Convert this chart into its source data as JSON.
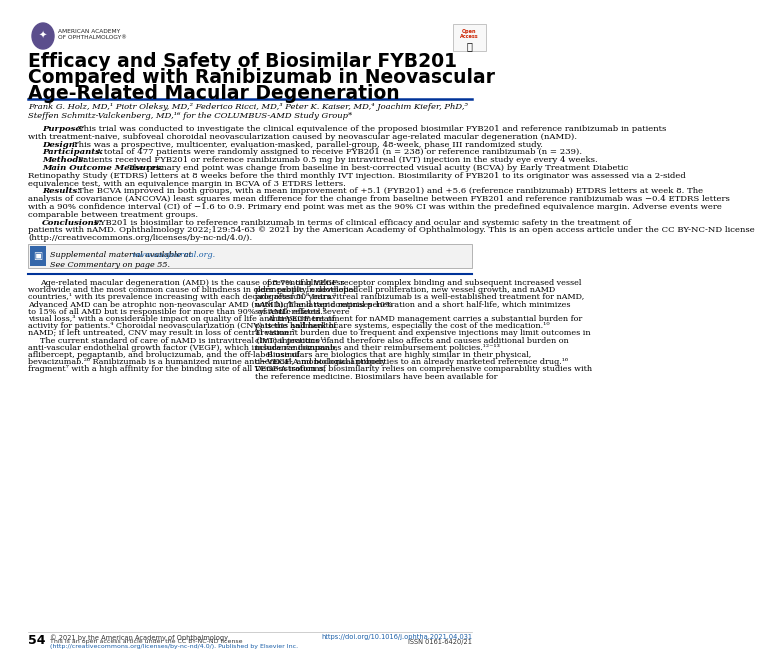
{
  "title_line1": "Efficacy and Safety of Biosimilar FYB201",
  "title_line2": "Compared with Ranibizumab in Neovascular",
  "title_line3": "Age-Related Macular Degeneration",
  "authors_line1": "Frank G. Holz, MD,¹ Piotr Oleksy, MD,² Federico Ricci, MD,³ Peter K. Kaiser, MD,⁴ Joachim Kiefer, PhD,⁵",
  "authors_line2": "Steffen Schmitz-Valckenberg, MD,¹⁶ for the COLUMBUS-AMD Study Group*",
  "logo_text1": "AMERICAN ACADEMY",
  "logo_text2": "OF OPHTHALMOLOGY®",
  "purpose_label": "Purpose:",
  "purpose_text": "This trial was conducted to investigate the clinical equivalence of the proposed biosimilar FYB201 and reference ranibizumab in patients with treatment-naive, subfoveal choroidal neovascularization caused by neovascular age-related macular degeneration (nAMD).",
  "design_label": "Design:",
  "design_text": "This was a prospective, multicenter, evaluation-masked, parallel-group, 48-week, phase III randomized study.",
  "participants_label": "Participants:",
  "participants_text": "A total of 477 patients were randomly assigned to receive FYB201 (n = 238) or reference ranibizumab (n = 239).",
  "methods_label": "Methods:",
  "methods_text": "Patients received FYB201 or reference ranibizumab 0.5 mg by intravitreal (IVT) injection in the study eye every 4 weeks.",
  "mainoutcome_label": "Main Outcome Measures:",
  "mainoutcome_text": "The primary end point was change from baseline in best-corrected visual acuity (BCVA) by Early Treatment Diabetic Retinopathy Study (ETDRS) letters at 8 weeks before the third monthly IVT injection. Biosimilarity of FYB201 to its originator was assessed via a 2-sided equivalence test, with an equivalence margin in BCVA of 3 ETDRS letters.",
  "results_label": "Results:",
  "results_text": "The BCVA improved in both groups, with a mean improvement of +5.1 (FYB201) and +5.6 (reference ranibizumab) ETDRS letters at week 8. The analysis of covariance (ANCOVA) least squares mean difference for the change from baseline between FYB201 and reference ranibizumab was −0.4 ETDRS letters with a 90% confidence interval (CI) of −1.6 to 0.9. Primary end point was met as the 90% CI was within the predefined equivalence margin. Adverse events were comparable between treatment groups.",
  "conclusions_label": "Conclusions:",
  "conclusions_text": "FYB201 is biosimilar to reference ranibizumab in terms of clinical efficacy and ocular and systemic safety in the treatment of patients with nAMD. Ophthalmology 2022;129:54-63 © 2021 by the American Academy of Ophthalmology. This is an open access article under the CC BY-NC-ND license (http://creativecommons.org/licenses/by-nc-nd/4.0/).",
  "conclusions_italic": "Ophthalmology 2022;129:54-63 © 2021 by the American Academy of Ophthalmology. This is an open access article under the CC BY-NC-ND license",
  "conclusions_link": "http://creativecommons.org/licenses/by-nc-nd/4.0/",
  "supplemental_pre": "Supplemental material available at ",
  "supplemental_link": "www.aaojournal.org.",
  "commentary_text": "See Commentary on page 55.",
  "body_col1_para1": "Age-related macular degeneration (AMD) is the cause of 8.7% of blindness worldwide and the most common cause of blindness in older people in developed countries,¹ with its prevalence increasing with each decade after 50 years.² Advanced AMD can be atrophic non-neovascular AMD (nAMD). The latter comprises 10% to 15% of all AMD but is responsible for more than 90% of AMD-related severe visual loss,³ with a considerable impact on quality of life and impairment of activity for patients.⁴ Choroidal neovascularization (CNV) is the hallmark of nAMD; if left untreated, CNV may result in loss of central vision.⁵",
  "body_col1_para2": "The current standard of care of nAMD is intravitreal (IVT) injections of anti-vascular endothelial growth factor (VEGF), which include ranibizumab, aflibercept, pegaptanib, and brolucizumab, and the off-label use of bevacizumab.²⁶ Ranibizumab is a humanized murine anti−VEGF-A monoclonal antibody fragment⁷ with a high affinity for the binding site of all VEGF-A isoforms,",
  "body_col2_para1": "preventing VEGF receptor complex binding and subsequent increased vessel permeability, endothelial cell proliferation, new vessel growth, and nAMD progression.⁸ Intravitreal ranibizumab is a well-established treatment for nAMD, with high and rapid retinal penetration and a short half-life, which minimizes systemic effects.⁹",
  "body_col2_para2": "Anti-VEGF treatment for nAMD management carries a substantial burden for patients and healthcare systems, especially the cost of the medication.¹⁰ Treatment burden due to frequent and expensive injections may limit outcomes in clinical practice¹¹ and therefore also affects and causes additional burden on insurance companies and their reimbursement policies.¹²⁻¹³",
  "body_col2_para3": "Biosimilars are biologics that are highly similar in their physical, chemical, and biological properties to an already marketed reference drug.¹⁶ Demonstration of biosimilarity relies on comprehensive comparability studies with the reference medicine. Biosimilars have been available for",
  "footer_page": "54",
  "footer_copyright": "© 2021 by the American Academy of Ophthalmology",
  "footer_license_line1": "This is an open access article under the CC BY-NC-ND license",
  "footer_license_line2": "(http://creativecommons.org/licenses/by-nc-nd/4.0/). Published by Elsevier Inc.",
  "footer_doi": "https://doi.org/10.1016/j.ophtha.2021.04.031",
  "footer_issn": "ISSN 0161-6420/21",
  "bg_color": "#ffffff",
  "header_bar_color": "#1a3a6b",
  "link_color": "#1a5fa8",
  "logo_purple": "#5b4e8c",
  "separator_color": "#003399"
}
